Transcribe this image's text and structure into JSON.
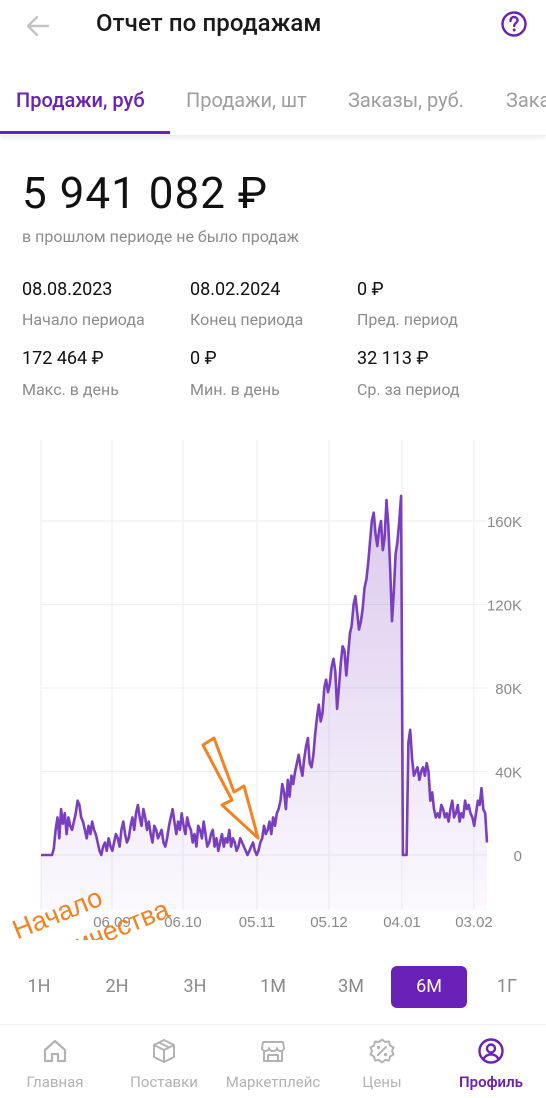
{
  "header": {
    "title": "Отчет по продажам"
  },
  "tabs": [
    "Продажи, руб",
    "Продажи, шт",
    "Заказы, руб.",
    "Заказы, шт"
  ],
  "summary": {
    "total": "5 941 082 ₽",
    "note": "в прошлом периоде не было продаж"
  },
  "stats": [
    {
      "value": "08.08.2023",
      "label": "Начало периода"
    },
    {
      "value": "08.02.2024",
      "label": "Конец периода"
    },
    {
      "value": "0 ₽",
      "label": "Пред. период"
    },
    {
      "value": "172 464 ₽",
      "label": "Макс. в день"
    },
    {
      "value": "0 ₽",
      "label": "Мин. в день"
    },
    {
      "value": "32 113 ₽",
      "label": "Ср. за период"
    }
  ],
  "annotation": {
    "line1": "Начало",
    "line2": "сотрудничества"
  },
  "chart_data": {
    "type": "area",
    "title": "",
    "xlabel": "",
    "ylabel": "",
    "x_ticks": [
      "06.09",
      "06.10",
      "05.11",
      "05.12",
      "04.01",
      "03.02"
    ],
    "y_ticks": [
      "0",
      "40K",
      "80K",
      "120K",
      "160K"
    ],
    "ylim": [
      0,
      172464
    ],
    "grid": true,
    "values": [
      0,
      0,
      0,
      0,
      0,
      0,
      0,
      3000,
      12000,
      18000,
      8000,
      22000,
      15000,
      20000,
      10000,
      18000,
      14000,
      12000,
      16000,
      20000,
      26000,
      24000,
      18000,
      16000,
      12000,
      8000,
      14000,
      10000,
      16000,
      12000,
      10000,
      6000,
      2000,
      0,
      4000,
      6000,
      2000,
      8000,
      4000,
      2000,
      6000,
      10000,
      8000,
      4000,
      12000,
      16000,
      10000,
      6000,
      8000,
      14000,
      18000,
      12000,
      20000,
      24000,
      18000,
      14000,
      22000,
      18000,
      12000,
      16000,
      10000,
      6000,
      14000,
      12000,
      8000,
      10000,
      12000,
      6000,
      4000,
      8000,
      14000,
      18000,
      22000,
      16000,
      10000,
      16000,
      12000,
      20000,
      14000,
      10000,
      18000,
      14000,
      12000,
      6000,
      10000,
      4000,
      14000,
      12000,
      8000,
      16000,
      10000,
      4000,
      6000,
      10000,
      12000,
      4000,
      8000,
      2000,
      6000,
      10000,
      4000,
      8000,
      6000,
      12000,
      4000,
      8000,
      6000,
      2000,
      4000,
      8000,
      6000,
      4000,
      2000,
      0,
      2000,
      4000,
      6000,
      2000,
      0,
      2000,
      6000,
      8000,
      14000,
      10000,
      12000,
      16000,
      10000,
      18000,
      14000,
      20000,
      22000,
      26000,
      34000,
      30000,
      22000,
      36000,
      28000,
      38000,
      34000,
      40000,
      44000,
      48000,
      42000,
      38000,
      46000,
      52000,
      56000,
      44000,
      42000,
      48000,
      58000,
      66000,
      72000,
      64000,
      68000,
      80000,
      84000,
      78000,
      82000,
      90000,
      94000,
      88000,
      70000,
      80000,
      92000,
      100000,
      98000,
      86000,
      96000,
      106000,
      110000,
      120000,
      124000,
      116000,
      108000,
      112000,
      118000,
      128000,
      132000,
      140000,
      150000,
      160000,
      164000,
      154000,
      148000,
      156000,
      160000,
      146000,
      152000,
      170000,
      158000,
      138000,
      112000,
      126000,
      144000,
      150000,
      160000,
      172000,
      0,
      0,
      0,
      54000,
      60000,
      46000,
      38000,
      40000,
      42000,
      36000,
      40000,
      42000,
      38000,
      44000,
      40000,
      26000,
      30000,
      22000,
      18000,
      20000,
      18000,
      24000,
      22000,
      18000,
      20000,
      16000,
      22000,
      26000,
      18000,
      20000,
      24000,
      16000,
      20000,
      18000,
      26000,
      22000,
      24000,
      20000,
      18000,
      14000,
      20000,
      26000,
      24000,
      32000,
      22000,
      20000,
      6000
    ]
  },
  "periods": {
    "items": [
      "1Н",
      "2Н",
      "3Н",
      "1М",
      "3М",
      "6М",
      "1Г"
    ],
    "selected": "6М"
  },
  "nav": [
    {
      "label": "Главная",
      "icon": "home-icon"
    },
    {
      "label": "Поставки",
      "icon": "box-icon"
    },
    {
      "label": "Маркетплейс",
      "icon": "shop-icon"
    },
    {
      "label": "Цены",
      "icon": "percent-badge-icon"
    },
    {
      "label": "Профиль",
      "icon": "profile-icon"
    }
  ],
  "colors": {
    "accent": "#6a21b8",
    "annotation": "#f58220",
    "line": "#7a3ec0"
  }
}
